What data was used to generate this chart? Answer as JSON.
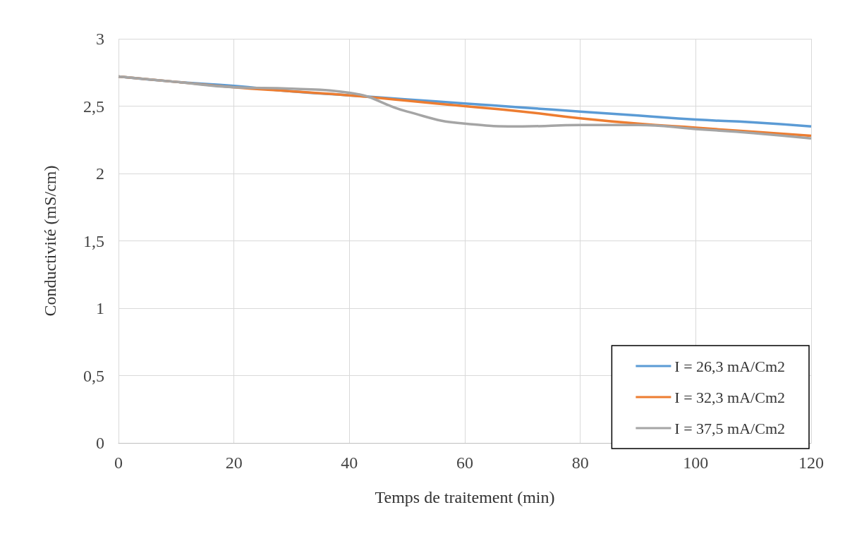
{
  "chart_data": {
    "type": "line",
    "xlabel": "Temps de traitement (min)",
    "ylabel": "Conductivité (mS/cm)",
    "x": [
      0,
      10,
      20,
      30,
      40,
      50,
      60,
      70,
      80,
      90,
      100,
      110,
      120
    ],
    "series": [
      {
        "name": "I = 26,3 mA/Cm2",
        "color": "#5b9bd5",
        "values": [
          2.72,
          2.68,
          2.65,
          2.61,
          2.58,
          2.55,
          2.52,
          2.49,
          2.46,
          2.43,
          2.4,
          2.38,
          2.35
        ]
      },
      {
        "name": "I = 32,3 mA/Cm2",
        "color": "#ed7d31",
        "values": [
          2.72,
          2.68,
          2.64,
          2.61,
          2.58,
          2.54,
          2.5,
          2.46,
          2.41,
          2.37,
          2.34,
          2.31,
          2.28
        ]
      },
      {
        "name": "I = 37,5 mA/Cm2",
        "color": "#a5a5a5",
        "values": [
          2.72,
          2.68,
          2.64,
          2.63,
          2.6,
          2.46,
          2.37,
          2.35,
          2.36,
          2.36,
          2.33,
          2.3,
          2.26
        ]
      }
    ],
    "xlim": [
      0,
      120
    ],
    "xticks": [
      0,
      20,
      40,
      60,
      80,
      100,
      120
    ],
    "ylim": [
      0,
      3
    ],
    "yticks": [
      0,
      {
        "value": 0.5,
        "label": "0,5"
      },
      1,
      {
        "value": 1.5,
        "label": "1,5"
      },
      2,
      {
        "value": 2.5,
        "label": "2,5"
      },
      3
    ],
    "grid": true,
    "legend": "bottom right",
    "marker": "none",
    "line_style": "solid"
  }
}
